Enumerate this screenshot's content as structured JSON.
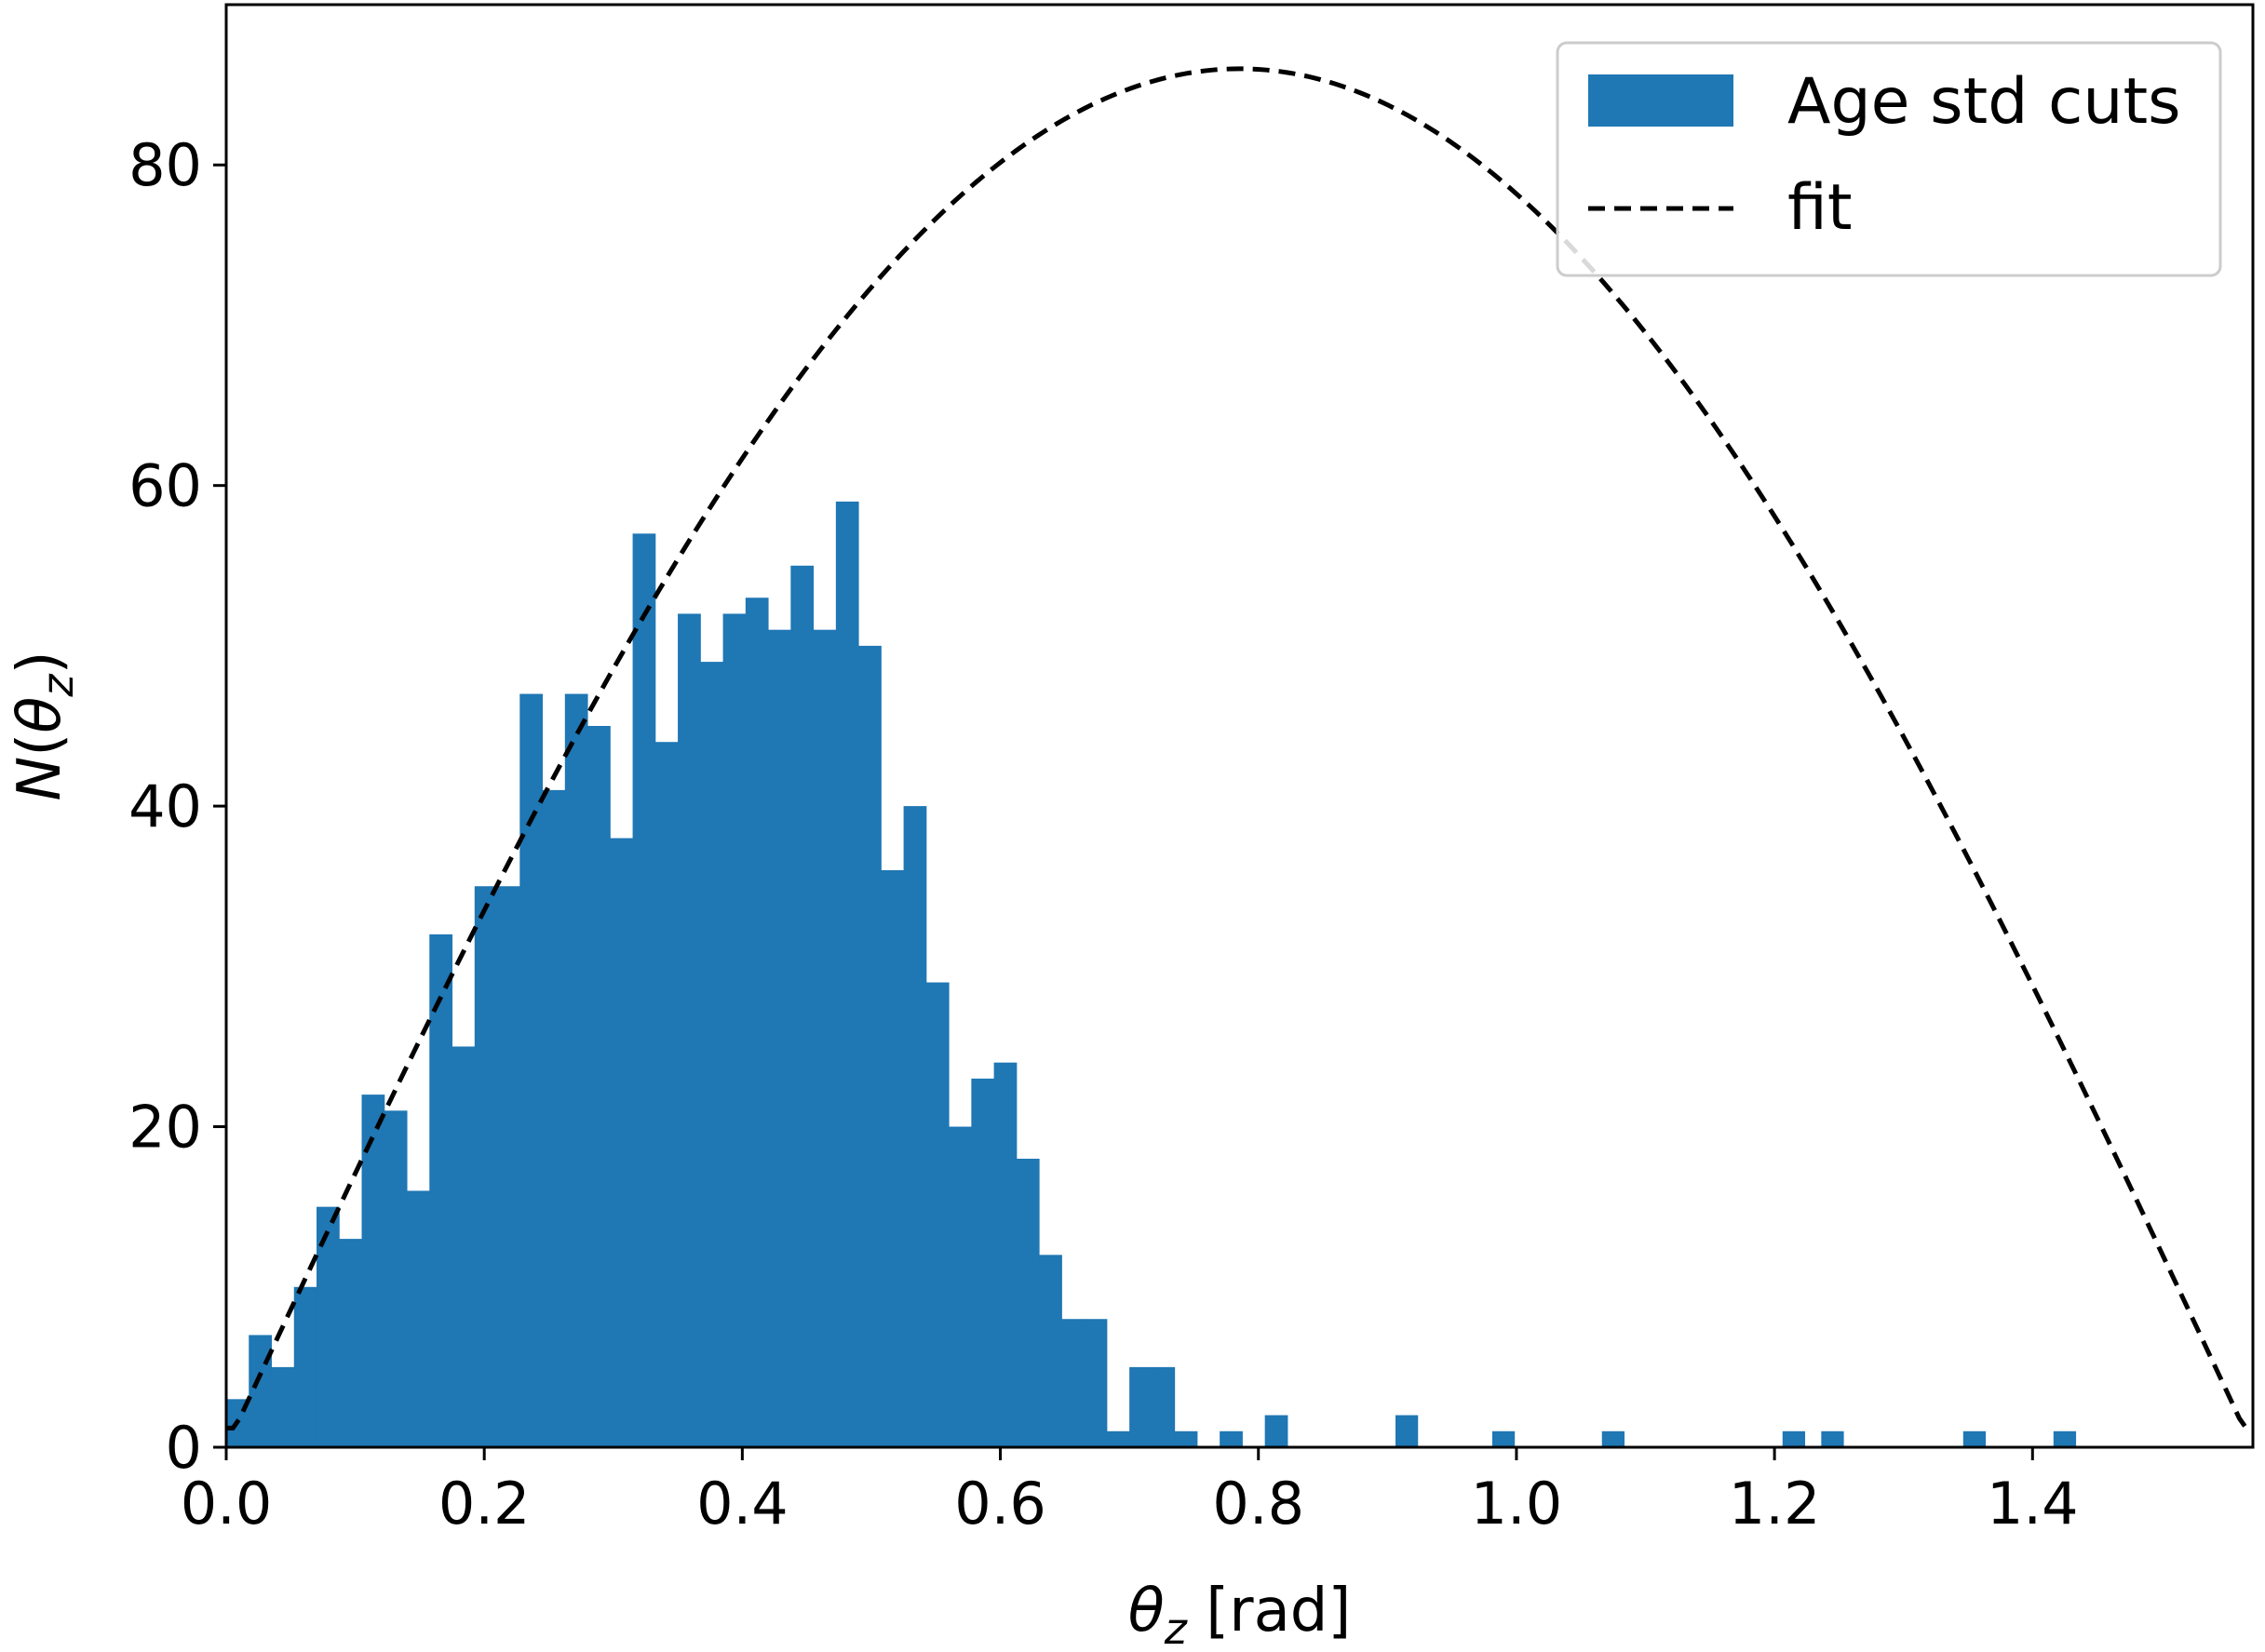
{
  "chart_data": {
    "type": "bar",
    "title": "",
    "xlabel": "θ_z [rad]",
    "ylabel": "N(θ_z)",
    "xlim": [
      0.0,
      1.5708
    ],
    "ylim": [
      0,
      90
    ],
    "xticks": [
      "0.0",
      "0.2",
      "0.4",
      "0.6",
      "0.8",
      "1.0",
      "1.2",
      "1.4"
    ],
    "yticks": [
      "0",
      "20",
      "40",
      "60",
      "80"
    ],
    "grid": false,
    "legend": {
      "placement": "top-right",
      "entries": [
        "Age std cuts",
        "fit"
      ]
    },
    "colors": {
      "bars": "#1f77b4",
      "fit": "#000000"
    },
    "series": [
      {
        "name": "Age std cuts",
        "type": "histogram",
        "bin_width": 0.0175,
        "bin_start": 0.0,
        "counts": [
          3,
          7,
          5,
          10,
          15,
          13,
          22,
          21,
          16,
          32,
          25,
          35,
          35,
          47,
          41,
          47,
          45,
          38,
          57,
          44,
          52,
          49,
          52,
          53,
          51,
          55,
          51,
          59,
          50,
          36,
          40,
          29,
          20,
          23,
          24,
          18,
          12,
          8,
          8,
          1,
          5,
          5,
          1,
          0,
          1,
          0,
          2,
          0,
          0,
          0,
          0,
          0,
          0,
          0,
          0,
          0,
          0,
          0,
          0,
          0,
          0,
          0,
          0,
          0,
          0,
          0,
          0,
          0,
          0,
          0,
          0,
          0,
          0,
          0,
          0,
          0,
          0,
          0,
          0,
          0,
          0,
          0,
          0,
          0,
          0,
          0,
          0,
          0,
          0,
          0
        ]
      },
      {
        "name": "fit",
        "type": "line",
        "style": "dashed",
        "function": "86 * sin(2 * x)",
        "x_range": [
          0.0,
          1.5708
        ]
      }
    ],
    "outlier_bins": [
      {
        "x": 0.915,
        "count": 2
      },
      {
        "x": 0.99,
        "count": 1
      },
      {
        "x": 1.075,
        "count": 1
      },
      {
        "x": 1.215,
        "count": 1
      },
      {
        "x": 1.245,
        "count": 1
      },
      {
        "x": 1.355,
        "count": 1
      },
      {
        "x": 1.425,
        "count": 1
      }
    ]
  }
}
